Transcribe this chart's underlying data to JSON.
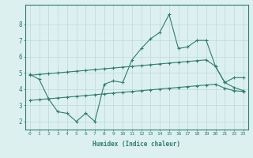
{
  "bg_color": "#ddf0f0",
  "line_color": "#2e7d70",
  "grid_color": "#b8dada",
  "xlabel": "Humidex (Indice chaleur)",
  "xlim": [
    -0.5,
    23.5
  ],
  "ylim": [
    1.5,
    9.2
  ],
  "yticks": [
    2,
    3,
    4,
    5,
    6,
    7,
    8
  ],
  "xticks": [
    0,
    1,
    2,
    3,
    4,
    5,
    6,
    7,
    8,
    9,
    10,
    11,
    12,
    13,
    14,
    15,
    16,
    17,
    18,
    19,
    20,
    21,
    22,
    23
  ],
  "series1_x": [
    0,
    1,
    2,
    3,
    4,
    5,
    6,
    7,
    8,
    9,
    10,
    11,
    12,
    13,
    14,
    15,
    16,
    17,
    18,
    19,
    20,
    21,
    22,
    23
  ],
  "series1_y": [
    4.9,
    4.6,
    3.4,
    2.6,
    2.5,
    2.0,
    2.5,
    2.0,
    4.3,
    4.5,
    4.4,
    5.8,
    6.5,
    7.1,
    7.5,
    8.6,
    6.5,
    6.6,
    7.0,
    7.0,
    5.4,
    4.4,
    4.1,
    3.9
  ],
  "series2_x": [
    0,
    1,
    2,
    3,
    4,
    5,
    6,
    7,
    8,
    9,
    10,
    11,
    12,
    13,
    14,
    15,
    16,
    17,
    18,
    19,
    20,
    21,
    22,
    23
  ],
  "series2_y": [
    4.85,
    4.9,
    4.95,
    5.0,
    5.05,
    5.1,
    5.15,
    5.2,
    5.25,
    5.3,
    5.35,
    5.4,
    5.45,
    5.5,
    5.55,
    5.6,
    5.65,
    5.7,
    5.75,
    5.8,
    5.4,
    4.4,
    4.7,
    4.7
  ],
  "series3_x": [
    0,
    1,
    2,
    3,
    4,
    5,
    6,
    7,
    8,
    9,
    10,
    11,
    12,
    13,
    14,
    15,
    16,
    17,
    18,
    19,
    20,
    21,
    22,
    23
  ],
  "series3_y": [
    3.3,
    3.35,
    3.4,
    3.45,
    3.5,
    3.55,
    3.6,
    3.65,
    3.7,
    3.75,
    3.8,
    3.85,
    3.9,
    3.95,
    4.0,
    4.05,
    4.1,
    4.15,
    4.2,
    4.25,
    4.3,
    4.05,
    3.9,
    3.85
  ]
}
